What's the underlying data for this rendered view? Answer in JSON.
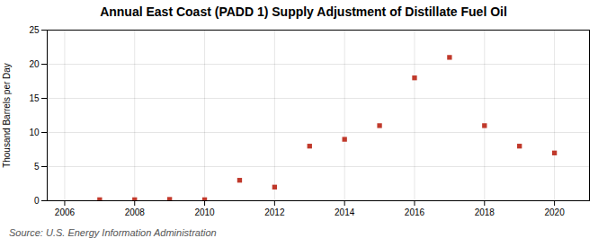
{
  "chart_data": {
    "type": "scatter",
    "title": "Annual East Coast (PADD 1) Supply Adjustment of Distillate Fuel Oil",
    "ylabel": "Thousand Barrels per Day",
    "source": "Source: U.S. Energy Information Administration",
    "x": [
      2007,
      2008,
      2009,
      2010,
      2011,
      2012,
      2013,
      2014,
      2015,
      2016,
      2017,
      2018,
      2019,
      2020
    ],
    "values": [
      0.15,
      0.15,
      0.2,
      0.15,
      3.0,
      2.0,
      8.0,
      9.0,
      11.0,
      18.0,
      21.0,
      11.0,
      8.0,
      7.0
    ],
    "color": "#c0392b",
    "marker": "square",
    "xlim": [
      2005.5,
      2021.0
    ],
    "xticks": [
      2006,
      2008,
      2010,
      2012,
      2014,
      2016,
      2018,
      2020
    ],
    "ylim": [
      0,
      25
    ],
    "yticks": [
      0,
      5,
      10,
      15,
      20,
      25
    ],
    "grid": true
  }
}
